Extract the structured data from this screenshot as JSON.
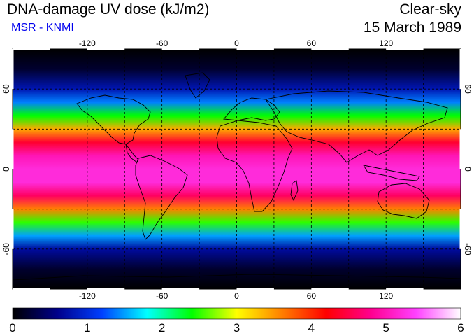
{
  "header": {
    "title": "DNA-damage UV dose (kJ/m2)",
    "source": "MSR - KNMI",
    "sky_condition": "Clear-sky",
    "date": "15 March 1989"
  },
  "map": {
    "projection": "equirectangular",
    "lon_range": [
      -180,
      180
    ],
    "lat_range": [
      -90,
      90
    ],
    "grid": true,
    "lon_tick_labels": [
      "-120",
      "-60",
      "0",
      "60",
      "120"
    ],
    "lat_tick_labels": [
      "60",
      "0",
      "-60"
    ],
    "latitude_profile": {
      "latitudes": [
        90,
        75,
        60,
        50,
        40,
        30,
        20,
        10,
        0,
        -10,
        -20,
        -30,
        -40,
        -50,
        -60,
        -75,
        -90
      ],
      "dose_kJ_m2": [
        0.0,
        0.2,
        0.8,
        1.4,
        2.4,
        3.4,
        4.4,
        5.0,
        5.2,
        5.2,
        4.6,
        3.6,
        2.5,
        1.5,
        0.7,
        0.2,
        0.0
      ]
    }
  },
  "colorbar": {
    "min": 0,
    "max": 6,
    "tick_labels": [
      "0",
      "1",
      "2",
      "3",
      "4",
      "5",
      "6"
    ],
    "colors": [
      "#000000",
      "#00008b",
      "#0040ff",
      "#00ffff",
      "#00ff00",
      "#ffff00",
      "#ff8000",
      "#ff0000",
      "#ff0090",
      "#ff40ff",
      "#ffffff"
    ]
  }
}
